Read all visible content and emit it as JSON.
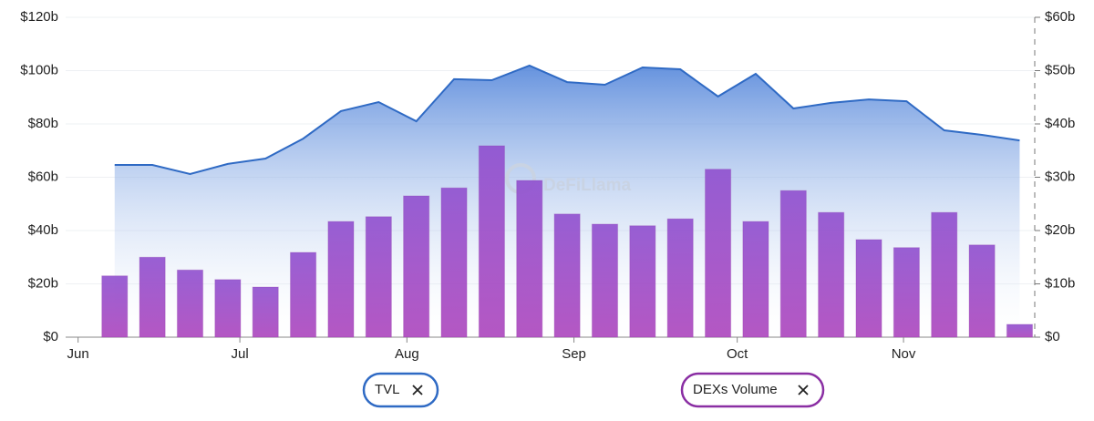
{
  "chart_data": {
    "type": "combo",
    "watermark": "DeFiLlama",
    "x": [
      0,
      1,
      2,
      3,
      4,
      5,
      6,
      7,
      8,
      9,
      10,
      11,
      12,
      13,
      14,
      15,
      16,
      17,
      18,
      19,
      20,
      21,
      22,
      23,
      24
    ],
    "xlim": [
      -1.3,
      24.4
    ],
    "xticks": [
      {
        "value": -0.97,
        "label": "Jun"
      },
      {
        "value": 3.32,
        "label": "Jul"
      },
      {
        "value": 7.75,
        "label": "Aug"
      },
      {
        "value": 12.18,
        "label": "Sep"
      },
      {
        "value": 16.51,
        "label": "Oct"
      },
      {
        "value": 20.92,
        "label": "Nov"
      }
    ],
    "ylim": [
      0,
      120
    ],
    "yticks": [
      {
        "value": 0,
        "label": "$0"
      },
      {
        "value": 20,
        "label": "$20b"
      },
      {
        "value": 40,
        "label": "$40b"
      },
      {
        "value": 60,
        "label": "$60b"
      },
      {
        "value": 80,
        "label": "$80b"
      },
      {
        "value": 100,
        "label": "$100b"
      },
      {
        "value": 120,
        "label": "$120b"
      }
    ],
    "y2lim": [
      0,
      60
    ],
    "y2ticks": [
      {
        "value": 0,
        "label": "$0"
      },
      {
        "value": 10,
        "label": "$10b"
      },
      {
        "value": 20,
        "label": "$20b"
      },
      {
        "value": 30,
        "label": "$30b"
      },
      {
        "value": 40,
        "label": "$40b"
      },
      {
        "value": 50,
        "label": "$50b"
      },
      {
        "value": 60,
        "label": "$60b"
      }
    ],
    "grid": true,
    "series": [
      {
        "name": "TVL",
        "type": "area",
        "color": "#2f6ac4",
        "values": [
          64.6,
          64.6,
          61.2,
          65,
          67,
          74.5,
          84.8,
          88.2,
          81,
          96.8,
          96.4,
          101.9,
          95.7,
          94.7,
          101.2,
          100.5,
          90.3,
          98.8,
          85.8,
          87.9,
          89.2,
          88.5,
          77.6,
          75.9,
          73.8
        ]
      },
      {
        "name": "DEXs Volume",
        "type": "bar",
        "axis": "y2",
        "color": "#8a2ea3",
        "values": [
          11.5,
          15.0,
          12.6,
          10.8,
          9.4,
          15.9,
          21.7,
          22.6,
          26.5,
          28.0,
          35.9,
          29.4,
          23.1,
          21.2,
          20.9,
          22.2,
          31.5,
          21.7,
          27.5,
          23.4,
          18.3,
          16.8,
          23.4,
          17.3,
          2.4
        ]
      }
    ]
  }
}
